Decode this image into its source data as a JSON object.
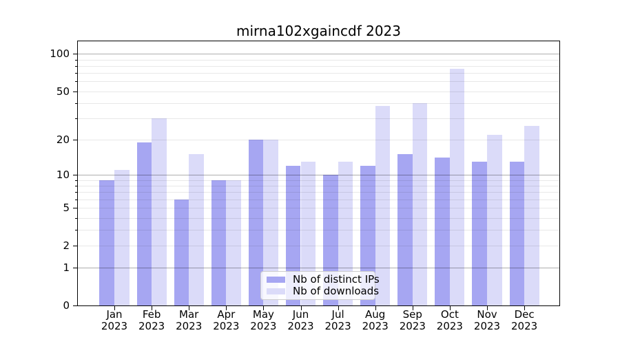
{
  "chart_data": {
    "type": "bar",
    "title": "mirna102xgaincdf 2023",
    "categories": [
      "Jan",
      "Feb",
      "Mar",
      "Apr",
      "May",
      "Jun",
      "Jul",
      "Aug",
      "Sep",
      "Oct",
      "Nov",
      "Dec"
    ],
    "category_year": "2023",
    "series": [
      {
        "name": "Nb of distinct IPs",
        "color": "#a6a6f2",
        "values": [
          9,
          19,
          6,
          9,
          20,
          12,
          10,
          12,
          15,
          14,
          13,
          13
        ]
      },
      {
        "name": "Nb of downloads",
        "color": "#dbdbf9",
        "values": [
          11,
          30,
          15,
          9,
          20,
          13,
          13,
          38,
          40,
          76,
          22,
          26
        ]
      }
    ],
    "xlabel": "",
    "ylabel": "",
    "yscale": "log1p",
    "ylim": [
      0,
      126
    ],
    "ytick_labels": [
      "0",
      "1",
      "2",
      "5",
      "10",
      "20",
      "50",
      "100"
    ],
    "ytick_values": [
      0,
      1,
      2,
      5,
      10,
      20,
      50,
      100
    ],
    "y_major_gridlines": [
      1,
      10,
      100
    ],
    "y_minor_gridlines": [
      2,
      3,
      4,
      5,
      6,
      7,
      8,
      9,
      20,
      30,
      40,
      50,
      60,
      70,
      80,
      90
    ],
    "grid": true,
    "legend_position": "lower-center"
  }
}
